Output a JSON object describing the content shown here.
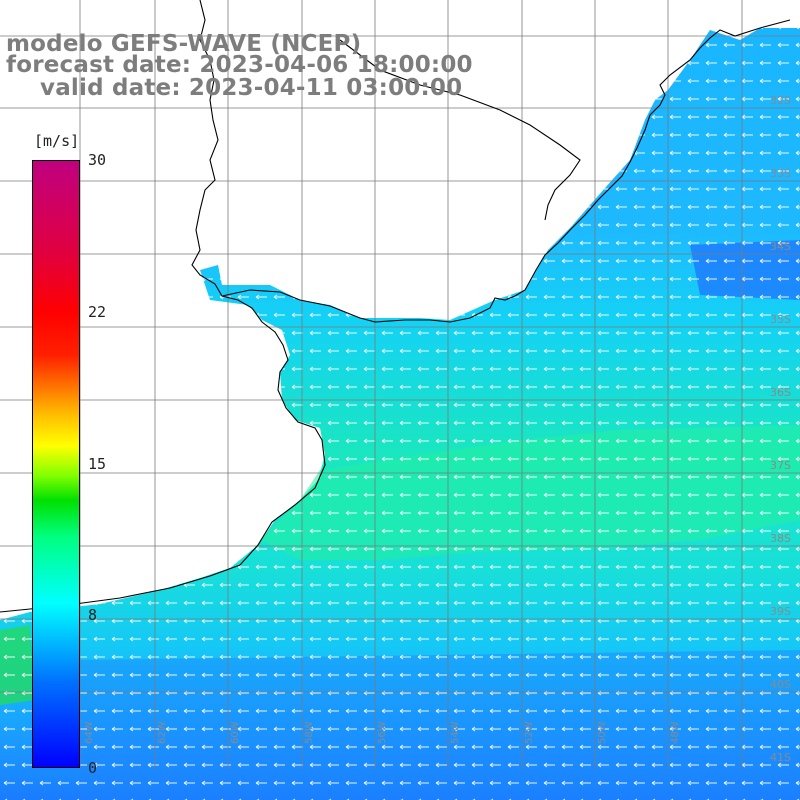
{
  "title": {
    "line1": "modelo GEFS-WAVE (NCEP)",
    "line2": "forecast date: 2023-04-06 18:00:00",
    "line3": "valid date: 2023-04-11 03:00:00"
  },
  "colorbar": {
    "unit": "[m/s]",
    "ticks": [
      "30",
      "22",
      "15",
      "8",
      "0"
    ],
    "tick_values": [
      30,
      22,
      15,
      8,
      0
    ],
    "min": 0,
    "max": 30
  },
  "latitude_labels": [
    "32S",
    "33S",
    "34S",
    "35S",
    "36S",
    "37S",
    "38S",
    "39S",
    "40S",
    "41S"
  ],
  "longitude_labels": [
    "64W",
    "62W",
    "60W",
    "58W",
    "56W",
    "54W",
    "52W",
    "50W",
    "48W"
  ],
  "colors": {
    "title": "#7d7d7d",
    "land": "#ffffff",
    "coast": "#000000",
    "grid": "#7a7a7a",
    "arrows": "#ffffff"
  }
}
